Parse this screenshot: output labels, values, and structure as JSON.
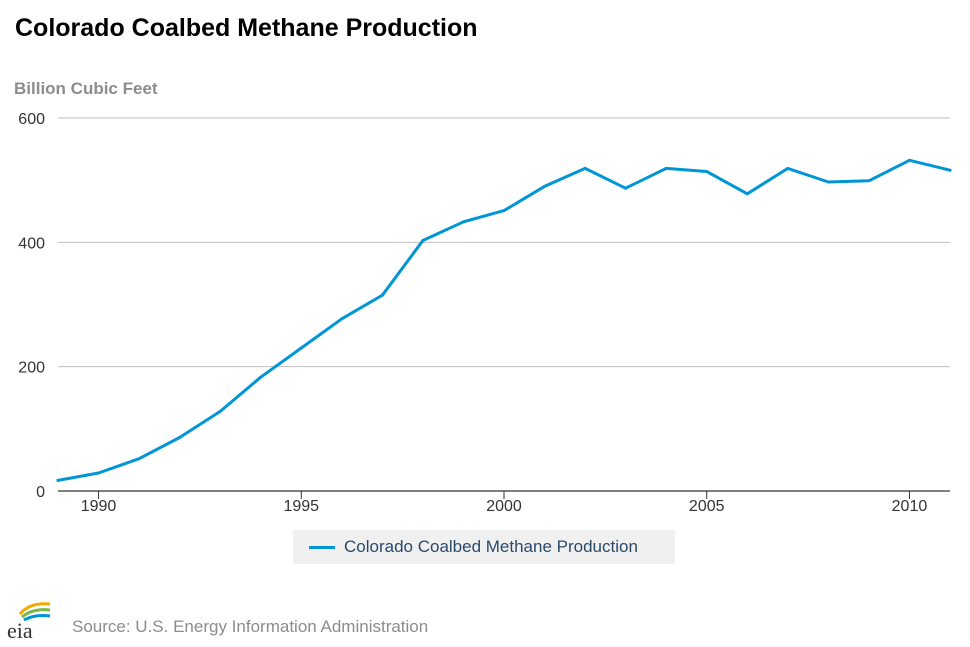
{
  "header": {
    "title": "Colorado Coalbed Methane Production"
  },
  "source_text": "Source: U.S. Energy Information Administration",
  "logo_text": "eia",
  "colors": {
    "series": "#0096d6",
    "grid": "#c0c0c0",
    "axis": "#333333"
  },
  "chart_data": {
    "type": "line",
    "title": "Colorado Coalbed Methane Production",
    "xlabel": "",
    "ylabel": "Billion Cubic Feet",
    "xlim": [
      1989,
      2011
    ],
    "ylim": [
      0,
      600
    ],
    "yticks": [
      "0",
      "200",
      "400",
      "600"
    ],
    "xticks": [
      "1990",
      "1995",
      "2000",
      "2005",
      "2010"
    ],
    "grid": true,
    "legend": "bottom-center",
    "x": [
      1989,
      1990,
      1991,
      1992,
      1993,
      1994,
      1995,
      1996,
      1997,
      1998,
      1999,
      2000,
      2001,
      2002,
      2003,
      2004,
      2005,
      2006,
      2007,
      2008,
      2009,
      2010,
      2011
    ],
    "series": [
      {
        "name": "Colorado Coalbed Methane Production",
        "values": [
          17,
          29,
          52,
          86,
          128,
          183,
          230,
          277,
          315,
          403,
          433,
          451,
          490,
          519,
          487,
          519,
          514,
          478,
          519,
          497,
          499,
          532,
          516
        ]
      }
    ]
  }
}
